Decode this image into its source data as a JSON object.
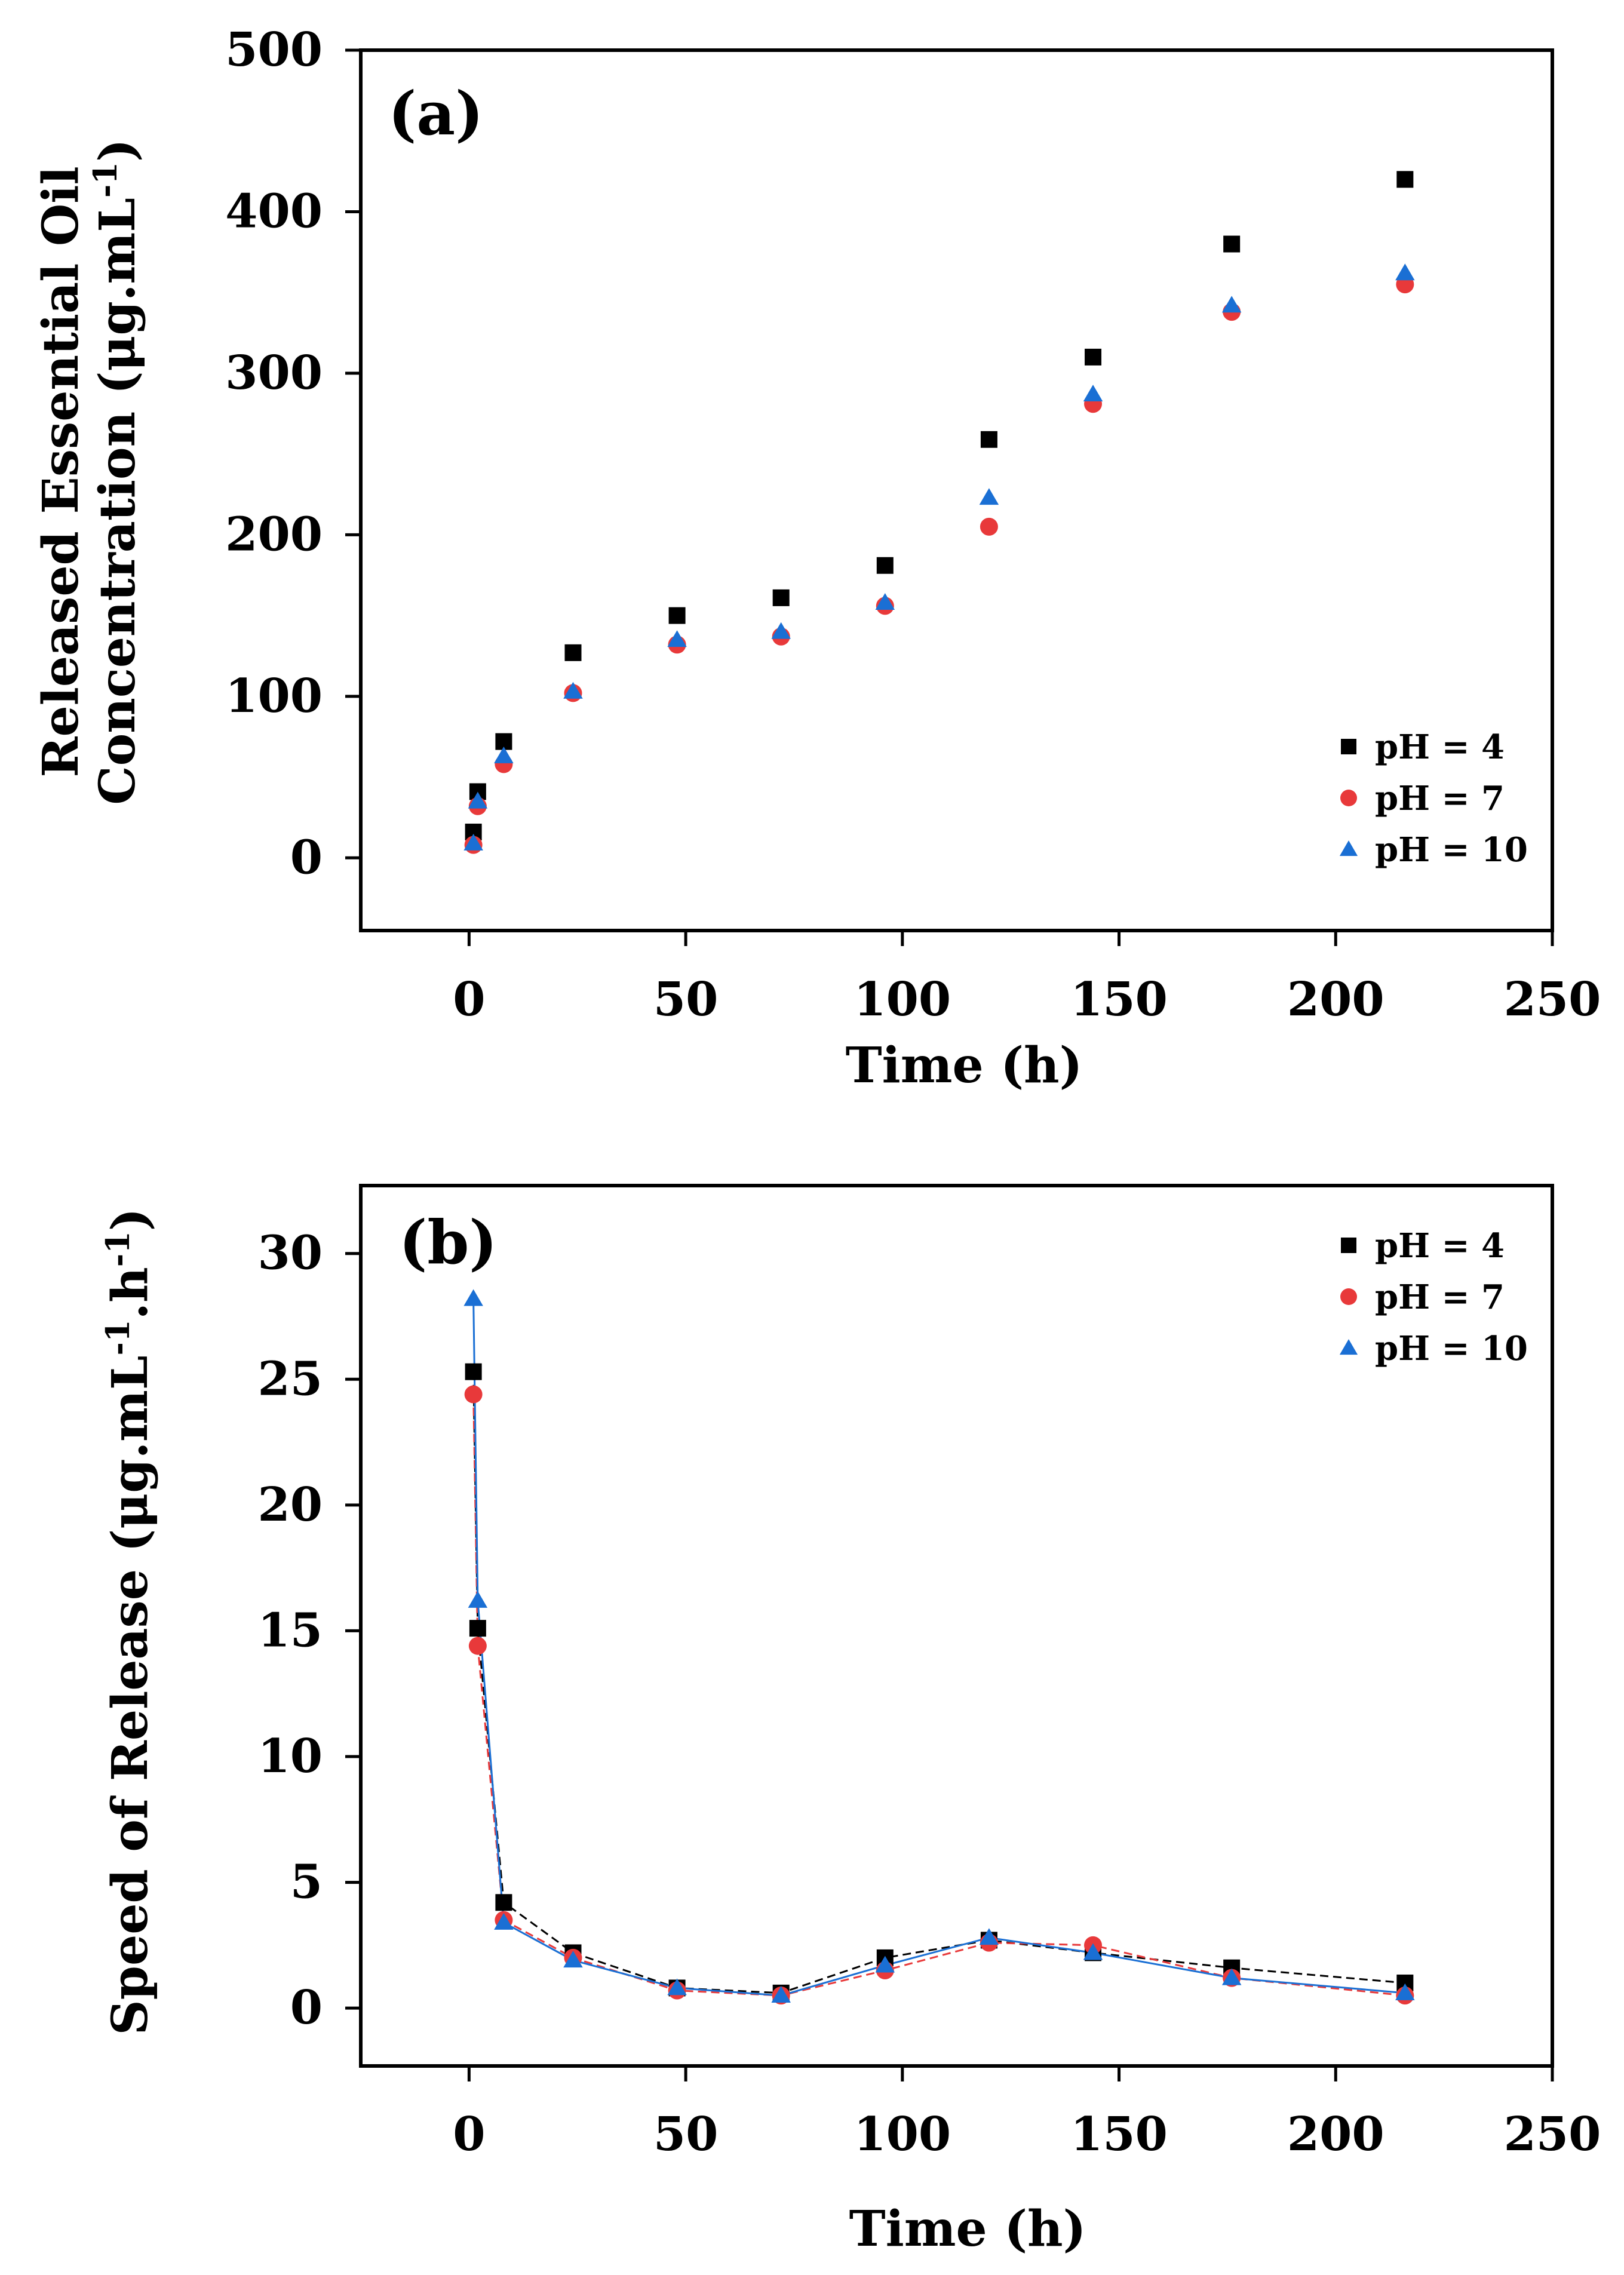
{
  "chart_data": [
    {
      "type": "scatter",
      "panel_label": "(a)",
      "xlabel": "Time (h)",
      "ylabel_line1": "Released Essential Oil",
      "ylabel_line2": "Concentration (μg.mL",
      "ylabel_sup": "-1",
      "ylabel_close": ")",
      "xlim": [
        -25,
        250
      ],
      "ylim": [
        -45,
        500
      ],
      "xticks": [
        0,
        50,
        100,
        150,
        200,
        250
      ],
      "yticks": [
        0,
        100,
        200,
        300,
        400,
        500
      ],
      "legend_position": "bottom-right",
      "series": [
        {
          "name": "pH = 4",
          "marker": "square",
          "color": "#000000",
          "x": [
            1,
            2,
            8,
            24,
            48,
            72,
            96,
            120,
            144,
            176,
            216
          ],
          "y": [
            16,
            41,
            72,
            127,
            150,
            161,
            181,
            259,
            310,
            380,
            420
          ]
        },
        {
          "name": "pH = 7",
          "marker": "circle",
          "color": "#e8393a",
          "x": [
            1,
            2,
            8,
            24,
            48,
            72,
            96,
            120,
            144,
            176,
            216
          ],
          "y": [
            8,
            32,
            58,
            102,
            132,
            137,
            156,
            205,
            281,
            338,
            355
          ]
        },
        {
          "name": "pH = 10",
          "marker": "triangle",
          "color": "#1a6fd4",
          "x": [
            1,
            2,
            8,
            24,
            48,
            72,
            96,
            120,
            144,
            176,
            216
          ],
          "y": [
            9,
            35,
            63,
            103,
            135,
            140,
            158,
            223,
            287,
            342,
            362
          ]
        }
      ]
    },
    {
      "type": "line",
      "panel_label": "(b)",
      "xlabel": "Time (h)",
      "ylabel_main": "Speed of Release (μg.mL",
      "ylabel_sup1": "-1",
      "ylabel_mid": ".h",
      "ylabel_sup2": "-1",
      "ylabel_close": ")",
      "xlim": [
        -25,
        250
      ],
      "ylim": [
        -2.3,
        32.7
      ],
      "xticks": [
        0,
        50,
        100,
        150,
        200,
        250
      ],
      "yticks": [
        0,
        5,
        10,
        15,
        20,
        25,
        30
      ],
      "legend_position": "top-right",
      "series": [
        {
          "name": "pH = 4",
          "marker": "square",
          "color": "#000000",
          "line_style": "dashed",
          "x": [
            1,
            2,
            8,
            24,
            48,
            72,
            96,
            120,
            144,
            176,
            216
          ],
          "y": [
            25.3,
            15.1,
            4.2,
            2.2,
            0.8,
            0.6,
            2.0,
            2.7,
            2.2,
            1.6,
            1.0
          ]
        },
        {
          "name": "pH = 7",
          "marker": "circle",
          "color": "#e8393a",
          "line_style": "dashed",
          "x": [
            1,
            2,
            8,
            24,
            48,
            72,
            96,
            120,
            144,
            176,
            216
          ],
          "y": [
            24.4,
            14.4,
            3.5,
            2.0,
            0.7,
            0.5,
            1.5,
            2.6,
            2.5,
            1.2,
            0.5
          ]
        },
        {
          "name": "pH = 10",
          "marker": "triangle",
          "color": "#1a6fd4",
          "line_style": "solid",
          "x": [
            1,
            2,
            8,
            24,
            48,
            72,
            96,
            120,
            144,
            176,
            216
          ],
          "y": [
            28.2,
            16.2,
            3.4,
            1.9,
            0.8,
            0.5,
            1.7,
            2.8,
            2.2,
            1.2,
            0.6
          ]
        }
      ]
    }
  ]
}
